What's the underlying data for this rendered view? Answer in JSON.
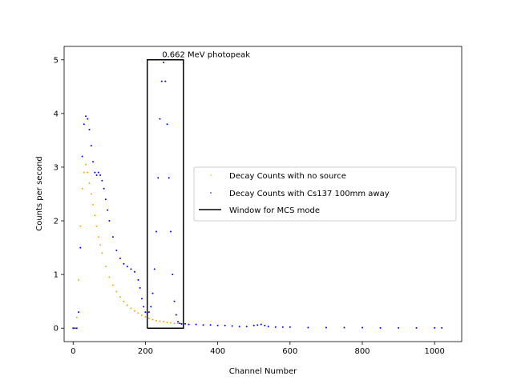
{
  "chart_data": {
    "type": "scatter",
    "xlabel": "Channel Number",
    "ylabel": "Counts per second",
    "xlim": [
      -25,
      1075
    ],
    "ylim": [
      -0.25,
      5.25
    ],
    "xticks": [
      "0",
      "200",
      "400",
      "600",
      "800",
      "1000"
    ],
    "xtick_values": [
      0,
      200,
      400,
      600,
      800,
      1000
    ],
    "yticks": [
      "0",
      "1",
      "2",
      "3",
      "4",
      "5"
    ],
    "ytick_values": [
      0,
      1,
      2,
      3,
      4,
      5
    ],
    "grid": false,
    "legend_placement": "center-right",
    "annotation": "0.662 MeV photopeak",
    "annotation_at": [
      246,
      5.05
    ],
    "series": [
      {
        "name": "Decay Counts with no source",
        "color": "#ffa500",
        "x": [
          0,
          5,
          10,
          15,
          20,
          25,
          30,
          35,
          40,
          45,
          50,
          55,
          60,
          65,
          70,
          75,
          80,
          90,
          100,
          110,
          120,
          130,
          140,
          150,
          160,
          170,
          180,
          190,
          200,
          210,
          220,
          230,
          240,
          250,
          260,
          270,
          280,
          290,
          300
        ],
        "y": [
          0,
          0,
          0.2,
          0.9,
          1.9,
          2.6,
          2.9,
          3.05,
          2.9,
          2.7,
          2.5,
          2.3,
          2.1,
          1.9,
          1.7,
          1.55,
          1.4,
          1.15,
          0.95,
          0.8,
          0.68,
          0.58,
          0.5,
          0.43,
          0.37,
          0.32,
          0.28,
          0.24,
          0.21,
          0.18,
          0.16,
          0.14,
          0.13,
          0.12,
          0.11,
          0.1,
          0.09,
          0.09,
          0.08
        ]
      },
      {
        "name": "Decay Counts with Cs137 100mm away",
        "color": "#0000ff",
        "x": [
          0,
          5,
          10,
          15,
          20,
          25,
          30,
          35,
          40,
          45,
          50,
          55,
          60,
          65,
          70,
          75,
          80,
          85,
          90,
          95,
          100,
          110,
          120,
          130,
          140,
          150,
          160,
          170,
          180,
          185,
          190,
          195,
          200,
          205,
          210,
          215,
          220,
          225,
          230,
          235,
          240,
          245,
          250,
          255,
          260,
          265,
          270,
          275,
          280,
          285,
          290,
          295,
          300,
          310,
          320,
          340,
          360,
          380,
          400,
          420,
          440,
          460,
          480,
          500,
          510,
          520,
          530,
          540,
          560,
          580,
          600,
          650,
          700,
          750,
          800,
          850,
          900,
          950,
          1000,
          1020
        ],
        "y": [
          0,
          0,
          0,
          0.3,
          1.5,
          3.2,
          3.8,
          3.95,
          3.9,
          3.7,
          3.4,
          3.1,
          2.9,
          2.85,
          2.9,
          2.85,
          2.75,
          2.6,
          2.4,
          2.2,
          2.0,
          1.7,
          1.45,
          1.3,
          1.2,
          1.15,
          1.1,
          1.05,
          0.9,
          0.75,
          0.55,
          0.4,
          0.3,
          0.28,
          0.3,
          0.4,
          0.65,
          1.1,
          1.8,
          2.8,
          3.9,
          4.6,
          4.95,
          4.6,
          3.8,
          2.8,
          1.8,
          1.0,
          0.5,
          0.25,
          0.12,
          0.09,
          0.08,
          0.08,
          0.07,
          0.07,
          0.06,
          0.06,
          0.05,
          0.05,
          0.04,
          0.03,
          0.03,
          0.05,
          0.06,
          0.07,
          0.05,
          0.03,
          0.02,
          0.02,
          0.02,
          0.01,
          0.01,
          0.01,
          0.01,
          0.005,
          0.005,
          0.005,
          0.005,
          0.005
        ]
      },
      {
        "name": "Window for MCS mode",
        "color": "#000000",
        "x": [
          205,
          205,
          305,
          305,
          205
        ],
        "y": [
          0,
          5,
          5,
          0,
          0
        ]
      }
    ]
  }
}
